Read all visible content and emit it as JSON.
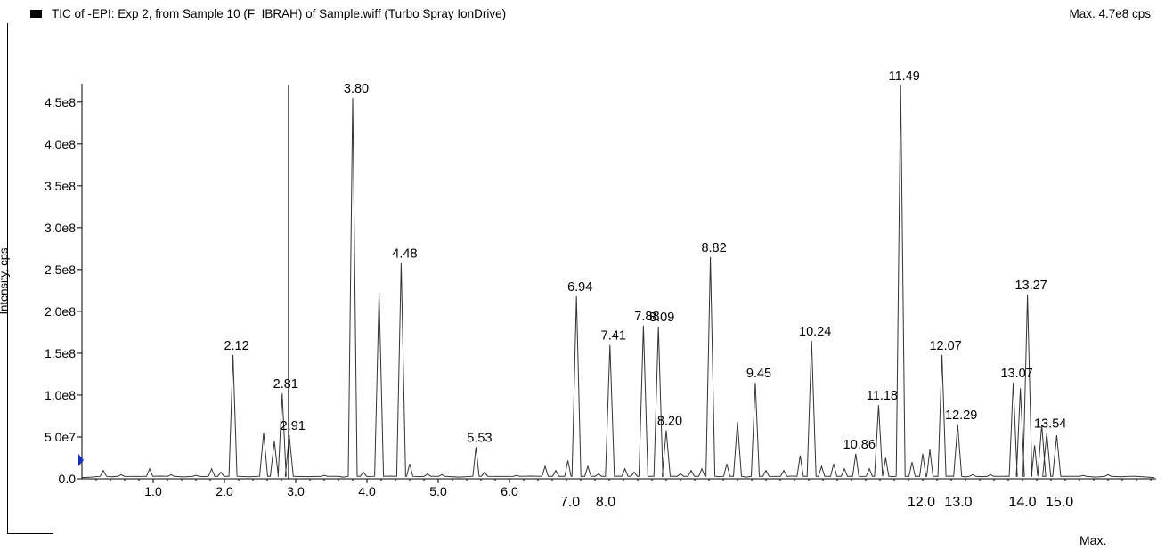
{
  "header": {
    "title": "TIC of -EPI: Exp 2, from Sample 10 (F_IBRAH) of Sample.wiff (Turbo Spray IonDrive)",
    "max_label": "Max. 4.7e8 cps"
  },
  "footer": {
    "max_label": "Max."
  },
  "colors": {
    "trace": "#333333",
    "axis": "#000000",
    "marker": "#1f2fb0"
  },
  "chart_data": {
    "type": "line",
    "title": "TIC of -EPI: Exp 2, from Sample 10 (F_IBRAH) of Sample.wiff (Turbo Spray IonDrive)",
    "xlabel": "",
    "ylabel": "Intensity, cps",
    "ylim": [
      0,
      470000000
    ],
    "grid": false,
    "yticks": [
      {
        "value": 0,
        "label": "0.0"
      },
      {
        "value": 50000000,
        "label": "5.0e7"
      },
      {
        "value": 100000000,
        "label": "1.0e8"
      },
      {
        "value": 150000000,
        "label": "1.5e8"
      },
      {
        "value": 200000000,
        "label": "2.0e8"
      },
      {
        "value": 250000000,
        "label": "2.5e8"
      },
      {
        "value": 300000000,
        "label": "3.0e8"
      },
      {
        "value": 350000000,
        "label": "3.5e8"
      },
      {
        "value": 400000000,
        "label": "4.0e8"
      },
      {
        "value": 450000000,
        "label": "4.5e8"
      }
    ],
    "xticks_lower": [
      {
        "value": 1.0,
        "label": "1.0"
      },
      {
        "value": 2.0,
        "label": "2.0"
      },
      {
        "value": 3.0,
        "label": "3.0"
      },
      {
        "value": 4.0,
        "label": "4.0"
      },
      {
        "value": 5.0,
        "label": "5.0"
      },
      {
        "value": 6.0,
        "label": "6.0"
      }
    ],
    "xticks_upper": [
      {
        "value": 6.85,
        "label": "7.0"
      },
      {
        "value": 7.35,
        "label": "8.0"
      },
      {
        "value": 11.78,
        "label": "12.0"
      },
      {
        "value": 12.3,
        "label": "13.0"
      },
      {
        "value": 13.2,
        "label": "14.0"
      },
      {
        "value": 13.72,
        "label": "15.0"
      }
    ],
    "tall_line": {
      "x": 2.9,
      "y": 470000000
    },
    "peaks": [
      {
        "x": 0.3,
        "y": 10000000
      },
      {
        "x": 0.55,
        "y": 5000000
      },
      {
        "x": 0.95,
        "y": 12000000
      },
      {
        "x": 1.25,
        "y": 5000000
      },
      {
        "x": 1.6,
        "y": 4000000
      },
      {
        "x": 1.82,
        "y": 12000000
      },
      {
        "x": 1.95,
        "y": 8000000
      },
      {
        "x": 2.12,
        "y": 148000000,
        "label": "2.12"
      },
      {
        "x": 2.55,
        "y": 55000000
      },
      {
        "x": 2.7,
        "y": 45000000
      },
      {
        "x": 2.81,
        "y": 102000000,
        "label": "2.81"
      },
      {
        "x": 2.91,
        "y": 52000000,
        "label": "2.91"
      },
      {
        "x": 3.4,
        "y": 4000000
      },
      {
        "x": 3.55,
        "y": 3000000
      },
      {
        "x": 3.8,
        "y": 455000000,
        "label": "3.80"
      },
      {
        "x": 3.95,
        "y": 8000000
      },
      {
        "x": 4.17,
        "y": 222000000
      },
      {
        "x": 4.48,
        "y": 258000000,
        "label": "4.48"
      },
      {
        "x": 4.6,
        "y": 18000000
      },
      {
        "x": 4.85,
        "y": 6000000
      },
      {
        "x": 5.05,
        "y": 5000000
      },
      {
        "x": 5.53,
        "y": 38000000,
        "label": "5.53"
      },
      {
        "x": 5.65,
        "y": 8000000
      },
      {
        "x": 6.1,
        "y": 4000000
      },
      {
        "x": 6.5,
        "y": 15000000
      },
      {
        "x": 6.65,
        "y": 10000000
      },
      {
        "x": 6.82,
        "y": 22000000
      },
      {
        "x": 6.94,
        "y": 218000000,
        "label": "6.94"
      },
      {
        "x": 7.1,
        "y": 15000000
      },
      {
        "x": 7.25,
        "y": 6000000
      },
      {
        "x": 7.41,
        "y": 160000000,
        "label": "7.41"
      },
      {
        "x": 7.62,
        "y": 12000000
      },
      {
        "x": 7.75,
        "y": 8000000
      },
      {
        "x": 7.88,
        "y": 183000000,
        "label": "7.88"
      },
      {
        "x": 8.09,
        "y": 182000000,
        "label": "8.09"
      },
      {
        "x": 8.2,
        "y": 58000000,
        "label": "8.20"
      },
      {
        "x": 8.4,
        "y": 6000000
      },
      {
        "x": 8.55,
        "y": 10000000
      },
      {
        "x": 8.7,
        "y": 12000000
      },
      {
        "x": 8.82,
        "y": 265000000,
        "label": "8.82"
      },
      {
        "x": 9.05,
        "y": 18000000
      },
      {
        "x": 9.2,
        "y": 68000000
      },
      {
        "x": 9.45,
        "y": 115000000,
        "label": "9.45"
      },
      {
        "x": 9.6,
        "y": 10000000
      },
      {
        "x": 9.85,
        "y": 10000000
      },
      {
        "x": 10.08,
        "y": 28000000
      },
      {
        "x": 10.24,
        "y": 165000000,
        "label": "10.24"
      },
      {
        "x": 10.38,
        "y": 15000000
      },
      {
        "x": 10.55,
        "y": 18000000
      },
      {
        "x": 10.7,
        "y": 12000000
      },
      {
        "x": 10.86,
        "y": 30000000,
        "label": "10.86"
      },
      {
        "x": 11.05,
        "y": 12000000
      },
      {
        "x": 11.18,
        "y": 88000000,
        "label": "11.18"
      },
      {
        "x": 11.28,
        "y": 25000000
      },
      {
        "x": 11.49,
        "y": 470000000,
        "label": "11.49"
      },
      {
        "x": 11.65,
        "y": 20000000
      },
      {
        "x": 11.8,
        "y": 30000000
      },
      {
        "x": 11.9,
        "y": 35000000
      },
      {
        "x": 12.07,
        "y": 148000000,
        "label": "12.07"
      },
      {
        "x": 12.29,
        "y": 65000000,
        "label": "12.29"
      },
      {
        "x": 12.5,
        "y": 5000000
      },
      {
        "x": 12.75,
        "y": 5000000
      },
      {
        "x": 13.07,
        "y": 115000000,
        "label": "13.07"
      },
      {
        "x": 13.17,
        "y": 108000000
      },
      {
        "x": 13.27,
        "y": 220000000,
        "label": "13.27"
      },
      {
        "x": 13.37,
        "y": 40000000
      },
      {
        "x": 13.47,
        "y": 65000000
      },
      {
        "x": 13.54,
        "y": 55000000,
        "label": "13.54"
      },
      {
        "x": 13.68,
        "y": 52000000
      },
      {
        "x": 14.05,
        "y": 4000000
      },
      {
        "x": 14.4,
        "y": 5000000
      },
      {
        "x": 14.75,
        "y": 3000000
      }
    ]
  }
}
